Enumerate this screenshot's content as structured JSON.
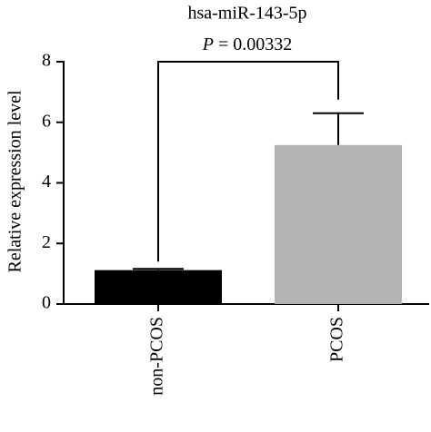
{
  "chart_data": {
    "type": "bar",
    "title": "hsa-miR-143-5p",
    "annotation": {
      "symbol": "P",
      "text": "= 0.00332"
    },
    "ylabel": "Relative expression level",
    "categories": [
      "non-PCOS",
      "PCOS"
    ],
    "values": [
      1.12,
      5.25
    ],
    "errors": [
      0.04,
      1.05
    ],
    "colors": [
      "#000000",
      "#b3b3b3"
    ],
    "ylim": [
      0,
      8
    ],
    "yticks": [
      0,
      2,
      4,
      6,
      8
    ]
  }
}
